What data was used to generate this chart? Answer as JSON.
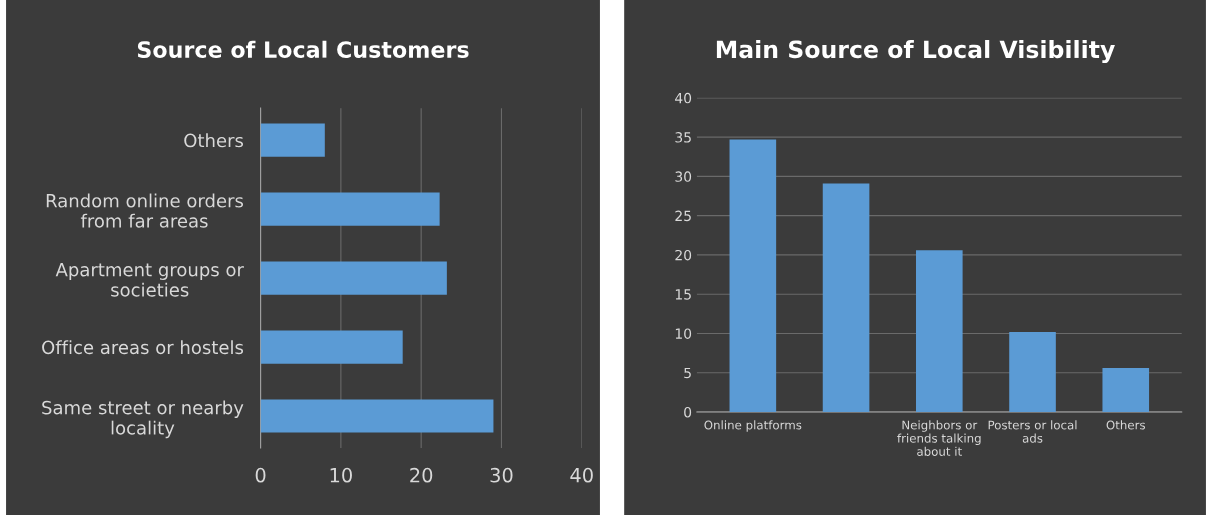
{
  "chart_data": [
    {
      "type": "bar",
      "orientation": "horizontal",
      "title": "Source of Local Customers",
      "categories": [
        "Others",
        "Random online orders\nfrom far areas",
        "Apartment groups or\nsocieties",
        "Office areas or hostels",
        "Same street or nearby\nlocality"
      ],
      "values": [
        8,
        22.3,
        23.2,
        17.7,
        29
      ],
      "color": "#5b9bd5",
      "xlim": [
        0,
        40
      ],
      "xticks": [
        0,
        10,
        20,
        30,
        40
      ],
      "grid": "x"
    },
    {
      "type": "bar",
      "title": "Main Source of Local Visibility",
      "categories": [
        "Online platforms",
        null,
        "Neighbors or\nfriends talking\nabout it",
        "Posters or local\nads",
        "Others"
      ],
      "values": [
        34.7,
        29.1,
        20.6,
        10.2,
        5.6
      ],
      "color": "#5b9bd5",
      "ylim": [
        0,
        40
      ],
      "yticks": [
        0,
        5,
        10,
        15,
        20,
        25,
        30,
        35,
        40
      ],
      "grid": "y"
    }
  ]
}
